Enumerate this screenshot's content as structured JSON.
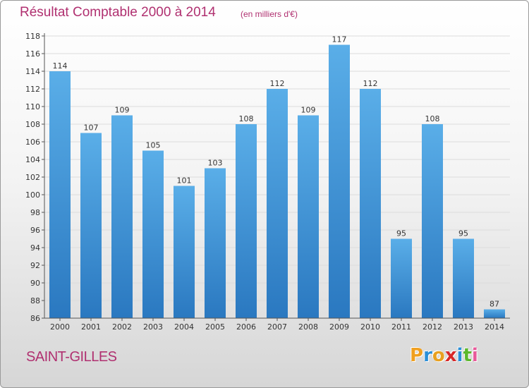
{
  "title": "Résultat Comptable 2000 à 2014",
  "unit_note": "(en milliers d'€)",
  "commune": "SAINT-GILLES",
  "logo": {
    "letters": [
      "P",
      "r",
      "o",
      "x",
      "i",
      "t",
      "i"
    ],
    "colors": [
      "#f0a020",
      "#2a8fd8",
      "#e8a020",
      "#d82828",
      "#2a8fd8",
      "#5cb82c",
      "#e85a9a"
    ]
  },
  "colors": {
    "title": "#b03070",
    "bar_light": "#5aaee8",
    "bar_dark": "#2a78c0"
  },
  "chart_data": {
    "type": "bar",
    "title": "Résultat Comptable 2000 à 2014",
    "xlabel": "",
    "ylabel": "",
    "ylim": [
      86,
      118
    ],
    "yticks": [
      86,
      88,
      90,
      92,
      94,
      96,
      98,
      100,
      102,
      104,
      106,
      108,
      110,
      112,
      114,
      116,
      118
    ],
    "grid": true,
    "categories": [
      "2000",
      "2001",
      "2002",
      "2003",
      "2004",
      "2005",
      "2006",
      "2007",
      "2008",
      "2009",
      "2010",
      "2011",
      "2012",
      "2013",
      "2014"
    ],
    "values": [
      114,
      107,
      109,
      105,
      101,
      103,
      108,
      112,
      109,
      117,
      112,
      95,
      108,
      95,
      87
    ]
  }
}
